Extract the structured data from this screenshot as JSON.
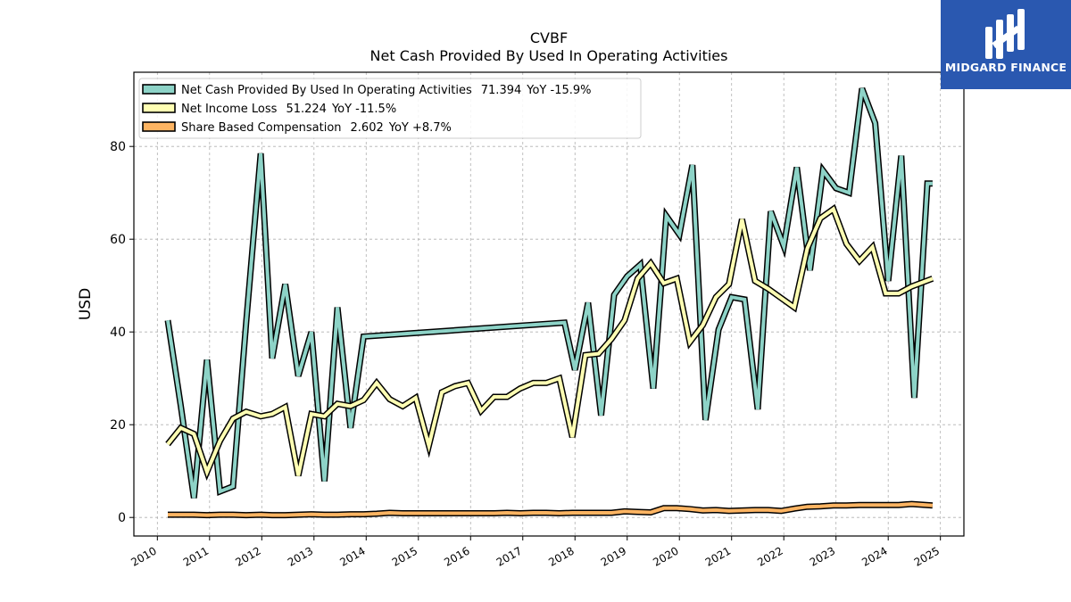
{
  "chart_data": {
    "type": "line",
    "title": "CVBF",
    "subtitle": "Net Cash Provided By Used In Operating Activities",
    "xlabel": "",
    "ylabel": "USD",
    "xlim": [
      2009.55,
      2025.45
    ],
    "ylim": [
      -4,
      96
    ],
    "yticks": [
      0,
      20,
      40,
      60,
      80
    ],
    "xticks": [
      "2010",
      "2011",
      "2012",
      "2013",
      "2014",
      "2015",
      "2016",
      "2017",
      "2018",
      "2019",
      "2020",
      "2021",
      "2022",
      "2023",
      "2024",
      "2025"
    ],
    "grid": true,
    "legend_position": "top-left",
    "series": [
      {
        "name": "Net Cash Provided By Used In Operating Activities",
        "legend_value": "71.394",
        "legend_yoy": "YoY -15.9%",
        "color": "#8dd3c7",
        "points": [
          [
            2010.2,
            42.5
          ],
          [
            2010.45,
            24.0
          ],
          [
            2010.7,
            4.2
          ],
          [
            2010.95,
            34.0
          ],
          [
            2011.2,
            5.6
          ],
          [
            2011.45,
            6.7
          ],
          [
            2011.7,
            42.0
          ],
          [
            2011.98,
            78.5
          ],
          [
            2012.2,
            34.3
          ],
          [
            2012.45,
            50.3
          ],
          [
            2012.7,
            30.5
          ],
          [
            2012.95,
            40.0
          ],
          [
            2013.2,
            7.8
          ],
          [
            2013.45,
            45.3
          ],
          [
            2013.7,
            19.3
          ],
          [
            2013.95,
            39.0
          ],
          [
            2017.8,
            42.0
          ],
          [
            2018.0,
            31.8
          ],
          [
            2018.25,
            46.3
          ],
          [
            2018.5,
            22.0
          ],
          [
            2018.75,
            48.0
          ],
          [
            2019.0,
            52.0
          ],
          [
            2019.25,
            54.5
          ],
          [
            2019.5,
            27.8
          ],
          [
            2019.75,
            65.0
          ],
          [
            2020.0,
            61.0
          ],
          [
            2020.25,
            76.0
          ],
          [
            2020.5,
            21.0
          ],
          [
            2020.75,
            40.5
          ],
          [
            2021.0,
            47.5
          ],
          [
            2021.25,
            47.0
          ],
          [
            2021.5,
            23.3
          ],
          [
            2021.75,
            66.0
          ],
          [
            2022.0,
            58.5
          ],
          [
            2022.25,
            75.5
          ],
          [
            2022.5,
            53.3
          ],
          [
            2022.75,
            74.8
          ],
          [
            2023.0,
            71.0
          ],
          [
            2023.25,
            70.0
          ],
          [
            2023.5,
            92.5
          ],
          [
            2023.75,
            85.0
          ],
          [
            2024.0,
            51.0
          ],
          [
            2024.25,
            78.0
          ],
          [
            2024.5,
            25.8
          ],
          [
            2024.75,
            72.0
          ],
          [
            2024.85,
            72.0
          ]
        ]
      },
      {
        "name": "Net Income Loss",
        "legend_value": "51.224",
        "legend_yoy": "YoY -11.5%",
        "color": "#ffffb3",
        "points": [
          [
            2010.2,
            15.8
          ],
          [
            2010.45,
            19.3
          ],
          [
            2010.7,
            18.0
          ],
          [
            2010.95,
            9.8
          ],
          [
            2011.2,
            16.5
          ],
          [
            2011.45,
            21.3
          ],
          [
            2011.7,
            22.8
          ],
          [
            2011.98,
            21.8
          ],
          [
            2012.2,
            22.3
          ],
          [
            2012.45,
            23.8
          ],
          [
            2012.7,
            9.0
          ],
          [
            2012.95,
            22.3
          ],
          [
            2013.2,
            21.8
          ],
          [
            2013.45,
            24.5
          ],
          [
            2013.7,
            24.0
          ],
          [
            2013.95,
            25.3
          ],
          [
            2014.2,
            29.0
          ],
          [
            2014.45,
            25.5
          ],
          [
            2014.7,
            24.0
          ],
          [
            2014.95,
            25.8
          ],
          [
            2015.2,
            15.5
          ],
          [
            2015.45,
            27.0
          ],
          [
            2015.7,
            28.3
          ],
          [
            2015.95,
            29.0
          ],
          [
            2016.2,
            23.0
          ],
          [
            2016.45,
            26.0
          ],
          [
            2016.7,
            26.0
          ],
          [
            2016.95,
            27.8
          ],
          [
            2017.2,
            29.0
          ],
          [
            2017.45,
            29.0
          ],
          [
            2017.7,
            30.0
          ],
          [
            2017.95,
            17.3
          ],
          [
            2018.2,
            35.0
          ],
          [
            2018.45,
            35.3
          ],
          [
            2018.7,
            38.5
          ],
          [
            2018.95,
            42.5
          ],
          [
            2019.2,
            51.5
          ],
          [
            2019.45,
            54.8
          ],
          [
            2019.7,
            50.5
          ],
          [
            2019.95,
            51.5
          ],
          [
            2020.2,
            37.8
          ],
          [
            2020.45,
            41.5
          ],
          [
            2020.7,
            47.5
          ],
          [
            2020.95,
            50.3
          ],
          [
            2021.2,
            64.3
          ],
          [
            2021.45,
            51.0
          ],
          [
            2021.7,
            49.3
          ],
          [
            2021.95,
            47.3
          ],
          [
            2022.2,
            45.3
          ],
          [
            2022.45,
            58.0
          ],
          [
            2022.7,
            64.5
          ],
          [
            2022.95,
            66.5
          ],
          [
            2023.2,
            59.0
          ],
          [
            2023.45,
            55.3
          ],
          [
            2023.7,
            58.3
          ],
          [
            2023.95,
            48.3
          ],
          [
            2024.2,
            48.3
          ],
          [
            2024.45,
            49.8
          ],
          [
            2024.85,
            51.5
          ]
        ]
      },
      {
        "name": "Share Based Compensation",
        "legend_value": "2.602",
        "legend_yoy": "YoY +8.7%",
        "color": "#fdb462",
        "points": [
          [
            2010.2,
            0.6
          ],
          [
            2010.45,
            0.6
          ],
          [
            2010.7,
            0.6
          ],
          [
            2010.95,
            0.5
          ],
          [
            2011.2,
            0.6
          ],
          [
            2011.45,
            0.6
          ],
          [
            2011.7,
            0.5
          ],
          [
            2011.98,
            0.6
          ],
          [
            2012.2,
            0.5
          ],
          [
            2012.45,
            0.5
          ],
          [
            2012.7,
            0.6
          ],
          [
            2012.95,
            0.7
          ],
          [
            2013.2,
            0.6
          ],
          [
            2013.45,
            0.6
          ],
          [
            2013.7,
            0.7
          ],
          [
            2013.95,
            0.7
          ],
          [
            2014.2,
            0.8
          ],
          [
            2014.45,
            1.0
          ],
          [
            2014.7,
            0.9
          ],
          [
            2014.95,
            0.9
          ],
          [
            2015.2,
            0.9
          ],
          [
            2015.45,
            0.9
          ],
          [
            2015.7,
            0.9
          ],
          [
            2015.95,
            0.9
          ],
          [
            2016.2,
            0.9
          ],
          [
            2016.45,
            0.9
          ],
          [
            2016.7,
            1.0
          ],
          [
            2016.95,
            0.9
          ],
          [
            2017.2,
            1.0
          ],
          [
            2017.45,
            1.0
          ],
          [
            2017.7,
            0.9
          ],
          [
            2017.95,
            1.0
          ],
          [
            2018.2,
            1.0
          ],
          [
            2018.45,
            1.0
          ],
          [
            2018.7,
            1.0
          ],
          [
            2018.95,
            1.3
          ],
          [
            2019.2,
            1.2
          ],
          [
            2019.45,
            1.1
          ],
          [
            2019.7,
            2.0
          ],
          [
            2019.95,
            2.0
          ],
          [
            2020.2,
            1.8
          ],
          [
            2020.45,
            1.5
          ],
          [
            2020.7,
            1.6
          ],
          [
            2020.95,
            1.4
          ],
          [
            2021.2,
            1.5
          ],
          [
            2021.45,
            1.6
          ],
          [
            2021.7,
            1.6
          ],
          [
            2021.95,
            1.4
          ],
          [
            2022.2,
            1.9
          ],
          [
            2022.45,
            2.3
          ],
          [
            2022.7,
            2.4
          ],
          [
            2022.95,
            2.6
          ],
          [
            2023.2,
            2.6
          ],
          [
            2023.45,
            2.7
          ],
          [
            2023.7,
            2.7
          ],
          [
            2023.95,
            2.7
          ],
          [
            2024.2,
            2.7
          ],
          [
            2024.45,
            2.9
          ],
          [
            2024.85,
            2.6
          ]
        ]
      }
    ]
  },
  "logo": {
    "text": "MIDGARD FINANCE",
    "background": "#2a58b0"
  }
}
